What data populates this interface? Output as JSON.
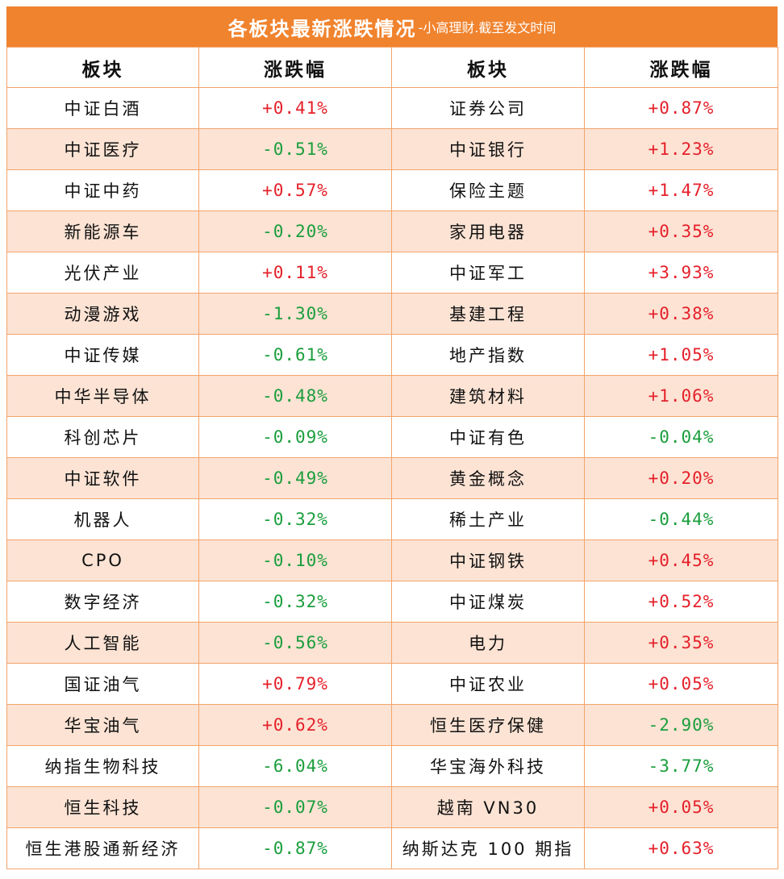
{
  "title": {
    "main": "各板块最新涨跌情况",
    "sub": "-小高理财.截至发文时间"
  },
  "headers": [
    "板块",
    "涨跌幅",
    "板块",
    "涨跌幅"
  ],
  "colors": {
    "header_bg": "#f0832e",
    "alt_row": "#fce3d4",
    "up": "#e5202a",
    "down": "#1a9e3c",
    "border": "#f3a46a"
  },
  "rows": [
    {
      "l_name": "中证白酒",
      "l_val": "+0.41%",
      "r_name": "证券公司",
      "r_val": "+0.87%"
    },
    {
      "l_name": "中证医疗",
      "l_val": "-0.51%",
      "r_name": "中证银行",
      "r_val": "+1.23%"
    },
    {
      "l_name": "中证中药",
      "l_val": "+0.57%",
      "r_name": "保险主题",
      "r_val": "+1.47%"
    },
    {
      "l_name": "新能源车",
      "l_val": "-0.20%",
      "r_name": "家用电器",
      "r_val": "+0.35%"
    },
    {
      "l_name": "光伏产业",
      "l_val": "+0.11%",
      "r_name": "中证军工",
      "r_val": "+3.93%"
    },
    {
      "l_name": "动漫游戏",
      "l_val": "-1.30%",
      "r_name": "基建工程",
      "r_val": "+0.38%"
    },
    {
      "l_name": "中证传媒",
      "l_val": "-0.61%",
      "r_name": "地产指数",
      "r_val": "+1.05%"
    },
    {
      "l_name": "中华半导体",
      "l_val": "-0.48%",
      "r_name": "建筑材料",
      "r_val": "+1.06%"
    },
    {
      "l_name": "科创芯片",
      "l_val": "-0.09%",
      "r_name": "中证有色",
      "r_val": "-0.04%"
    },
    {
      "l_name": "中证软件",
      "l_val": "-0.49%",
      "r_name": "黄金概念",
      "r_val": "+0.20%"
    },
    {
      "l_name": "机器人",
      "l_val": "-0.32%",
      "r_name": "稀土产业",
      "r_val": "-0.44%"
    },
    {
      "l_name": "CPO",
      "l_val": "-0.10%",
      "r_name": "中证钢铁",
      "r_val": "+0.45%"
    },
    {
      "l_name": "数字经济",
      "l_val": "-0.32%",
      "r_name": "中证煤炭",
      "r_val": "+0.52%"
    },
    {
      "l_name": "人工智能",
      "l_val": "-0.56%",
      "r_name": "电力",
      "r_val": "+0.35%"
    },
    {
      "l_name": "国证油气",
      "l_val": "+0.79%",
      "r_name": "中证农业",
      "r_val": "+0.05%"
    },
    {
      "l_name": "华宝油气",
      "l_val": "+0.62%",
      "r_name": "恒生医疗保健",
      "r_val": "-2.90%"
    },
    {
      "l_name": "纳指生物科技",
      "l_val": "-6.04%",
      "r_name": "华宝海外科技",
      "r_val": "-3.77%"
    },
    {
      "l_name": "恒生科技",
      "l_val": "-0.07%",
      "r_name": "越南 VN30",
      "r_val": "+0.05%"
    },
    {
      "l_name": "恒生港股通新经济",
      "l_val": "-0.87%",
      "r_name": "纳斯达克 100 期指",
      "r_val": "+0.63%"
    }
  ]
}
